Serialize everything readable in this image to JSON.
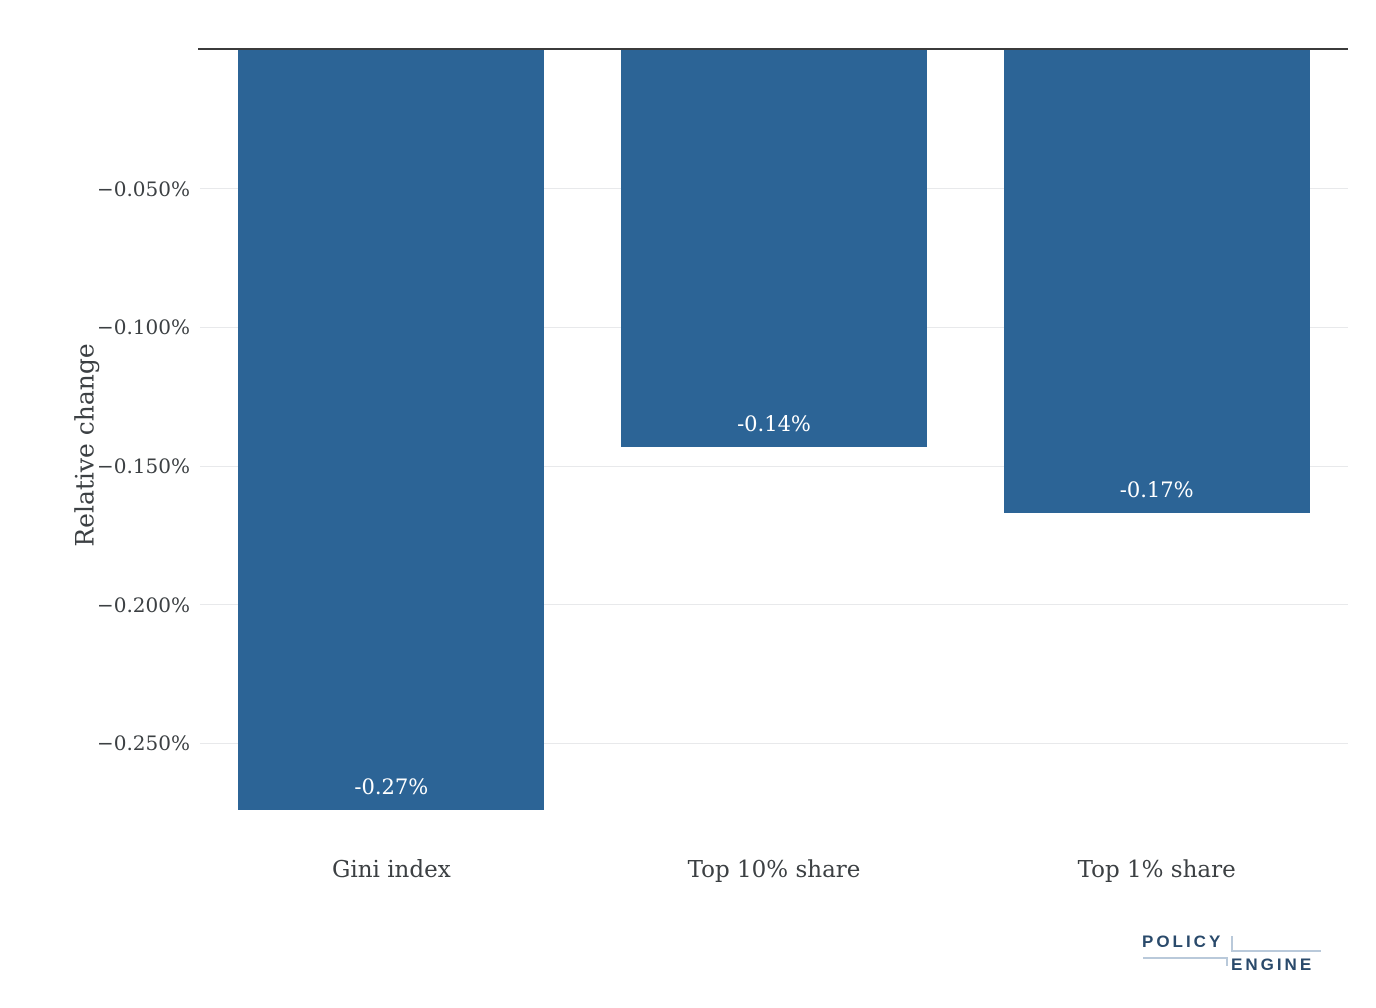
{
  "chart_data": {
    "type": "bar",
    "title": "",
    "categories": [
      "Gini index",
      "Top 10% share",
      "Top 1% share"
    ],
    "values": [
      -0.274,
      -0.143,
      -0.167
    ],
    "value_labels": [
      "-0.27%",
      "-0.14%",
      "-0.17%"
    ],
    "ylabel": "Relative change",
    "xlabel": "",
    "ylim": [
      -0.274,
      0
    ],
    "yticks": [
      {
        "value": -0.05,
        "label": "−0.050%"
      },
      {
        "value": -0.1,
        "label": "−0.100%"
      },
      {
        "value": -0.15,
        "label": "−0.150%"
      },
      {
        "value": -0.2,
        "label": "−0.200%"
      },
      {
        "value": -0.25,
        "label": "−0.250%"
      }
    ],
    "legend": "none",
    "grid": true,
    "colors": {
      "bar": "#2C6496",
      "bar_label": "#FFFFFF",
      "gridline": "#E8E9EB",
      "zero_line": "#3B3B3B",
      "axis_text": "#3C4043",
      "background": "#FFFFFF"
    }
  },
  "branding": {
    "logo_line1": "POLICY",
    "logo_line2": "ENGINE",
    "text_color": "#2A4A6B",
    "accent_line_color": "#B9C9DA"
  }
}
